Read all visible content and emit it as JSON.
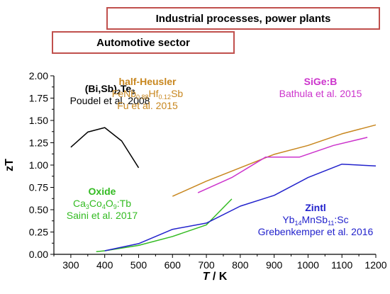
{
  "headers": {
    "industrial": "Industrial processes, power plants",
    "automotive": "Automotive sector"
  },
  "annotations": {
    "bisbte": {
      "title_pre": "(Bi,Sb)",
      "title_sub": "2",
      "title_mid": "Te",
      "title_sub2": "3",
      "source": "Poudel et al. 2008",
      "color": "#000000"
    },
    "heusler": {
      "title": "half-Heusler",
      "f1": "FeNb",
      "s1": "0.88",
      "f2": "Hf",
      "s2": "0.12",
      "f3": "Sb",
      "source": "Fu et al. 2015",
      "color": "#c8871f"
    },
    "sige": {
      "title": "SiGe:B",
      "source": "Bathula et al. 2015",
      "color": "#cc33cc"
    },
    "oxide": {
      "title": "Oxide",
      "f1": "Ca",
      "s1": "3",
      "f2": "Co",
      "s2": "4",
      "f3": "O",
      "s3": "9",
      "f4": ":Tb",
      "source": "Saini et al. 2017",
      "color": "#33bb22"
    },
    "zintl": {
      "title": "Zintl",
      "f1": "Yb",
      "s1": "14",
      "f2": "MnSb",
      "s2": "11",
      "f3": ":Sc",
      "source": "Grebenkemper et al. 2016",
      "color": "#2222cc"
    }
  },
  "chart_data": {
    "type": "line",
    "xlabel_italic": "T",
    "xlabel_unit": " / K",
    "ylabel": "zT",
    "xlim": [
      250,
      1200
    ],
    "ylim": [
      0,
      2.0
    ],
    "xticks": [
      "300",
      "400",
      "500",
      "600",
      "700",
      "800",
      "900",
      "1000",
      "1100",
      "1200"
    ],
    "yticks": [
      "0.00",
      "0.25",
      "0.50",
      "0.75",
      "1.00",
      "1.25",
      "1.50",
      "1.75",
      "2.00"
    ],
    "series": [
      {
        "name": "(Bi,Sb)2Te3",
        "color": "#000000",
        "x": [
          300,
          350,
          400,
          450,
          500
        ],
        "y": [
          1.2,
          1.37,
          1.42,
          1.27,
          0.97
        ]
      },
      {
        "name": "FeNb0.88Hf0.12Sb",
        "color": "#c8871f",
        "x": [
          600,
          700,
          800,
          900,
          1000,
          1100,
          1200
        ],
        "y": [
          0.65,
          0.82,
          0.97,
          1.12,
          1.22,
          1.35,
          1.45
        ]
      },
      {
        "name": "SiGe:B",
        "color": "#cc33cc",
        "x": [
          675,
          775,
          875,
          975,
          1075,
          1175
        ],
        "y": [
          0.69,
          0.86,
          1.09,
          1.09,
          1.22,
          1.31
        ]
      },
      {
        "name": "Ca3Co4O9:Tb",
        "color": "#33bb22",
        "x": [
          375,
          400,
          500,
          600,
          700,
          775
        ],
        "y": [
          0.03,
          0.04,
          0.1,
          0.2,
          0.33,
          0.62
        ]
      },
      {
        "name": "Yb14MnSb11:Sc",
        "color": "#2222cc",
        "x": [
          400,
          500,
          600,
          700,
          800,
          900,
          1000,
          1100,
          1200
        ],
        "y": [
          0.04,
          0.12,
          0.28,
          0.35,
          0.54,
          0.66,
          0.86,
          1.01,
          0.99
        ]
      }
    ]
  }
}
